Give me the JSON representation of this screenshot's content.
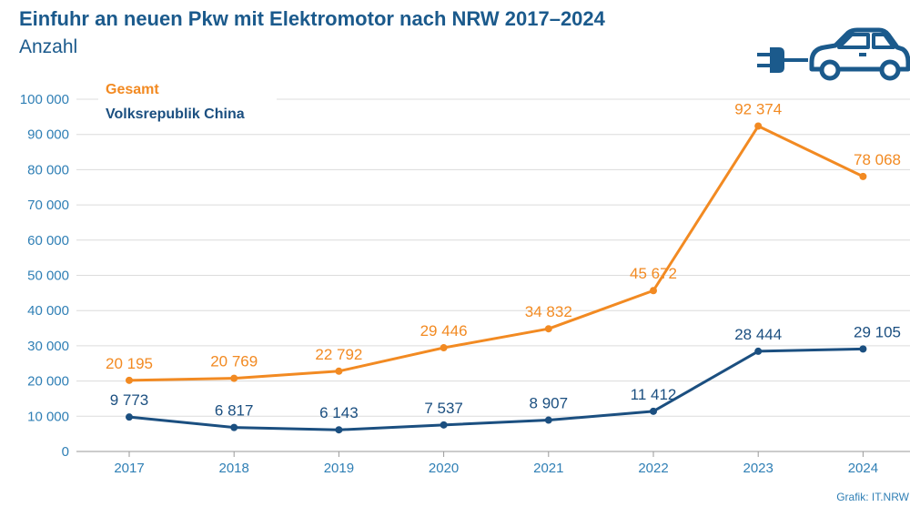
{
  "title": "Einfuhr an neuen Pkw mit Elektromotor nach NRW 2017–2024",
  "subtitle": "Anzahl",
  "credit": "Grafik: IT.NRW",
  "colors": {
    "gesamt": "#f28a22",
    "china": "#1b4f80",
    "axis_text": "#2f7fb5",
    "grid": "#dcdcdc",
    "title": "#1b5a8c"
  },
  "icons": [
    "plug-icon",
    "car-icon"
  ],
  "chart_data": {
    "type": "line",
    "categories": [
      "2017",
      "2018",
      "2019",
      "2020",
      "2021",
      "2022",
      "2023",
      "2024"
    ],
    "ylim": [
      0,
      100000
    ],
    "yticks": [
      0,
      10000,
      20000,
      30000,
      40000,
      50000,
      60000,
      70000,
      80000,
      90000,
      100000
    ],
    "ytick_labels": [
      "0",
      "10 000",
      "20 000",
      "30 000",
      "40 000",
      "50 000",
      "60 000",
      "70 000",
      "80 000",
      "90 000",
      "100 000"
    ],
    "grid": true,
    "legend_position": "top-left",
    "series": [
      {
        "name": "Gesamt",
        "values": [
          20195,
          20769,
          22792,
          29446,
          34832,
          45672,
          92374,
          78068
        ],
        "labels": [
          "20 195",
          "20 769",
          "22 792",
          "29 446",
          "34 832",
          "45 672",
          "92 374",
          "78 068"
        ]
      },
      {
        "name": "Volksrepublik China",
        "values": [
          9773,
          6817,
          6143,
          7537,
          8907,
          11412,
          28444,
          29105
        ],
        "labels": [
          "9 773",
          "6 817",
          "6 143",
          "7 537",
          "8 907",
          "11 412",
          "28 444",
          "29 105"
        ]
      }
    ]
  }
}
